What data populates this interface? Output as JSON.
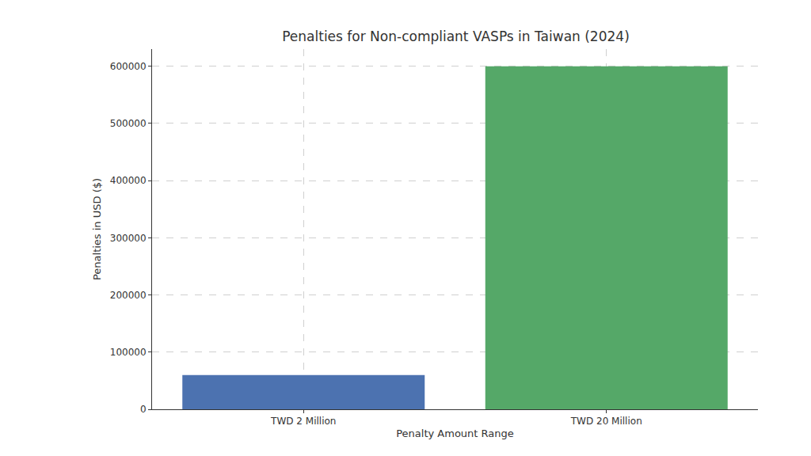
{
  "chart_data": {
    "type": "bar",
    "title": "Penalties for Non-compliant VASPs in Taiwan (2024)",
    "x_label": "Penalty Amount Range",
    "y_label": "Penalties in USD ($)",
    "categories": [
      "TWD 2 Million",
      "TWD 20 Million"
    ],
    "values": [
      60000,
      600000
    ],
    "colors": [
      "#4c72b0",
      "#55a868"
    ],
    "ylim": [
      0,
      630000
    ],
    "yticks": [
      0,
      100000,
      200000,
      300000,
      400000,
      500000,
      600000
    ],
    "grid": true
  }
}
